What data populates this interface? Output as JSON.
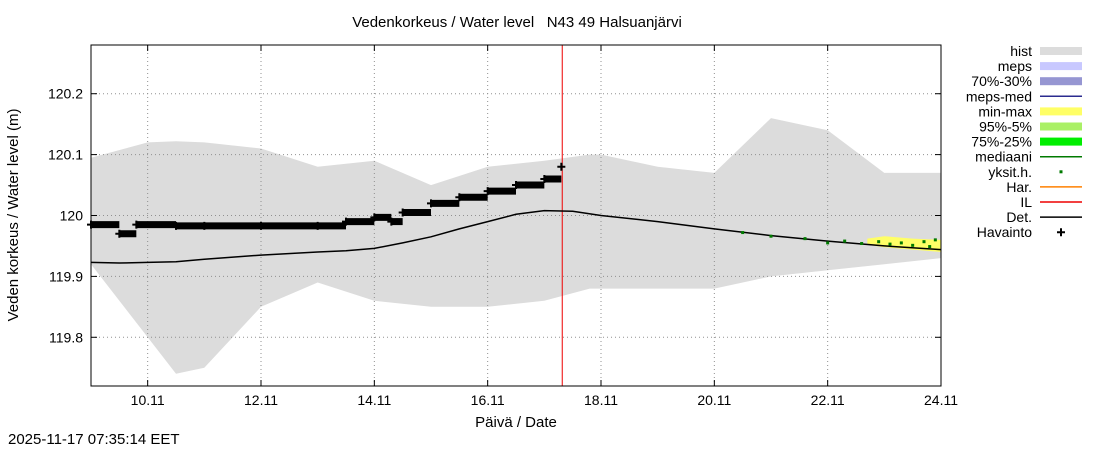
{
  "timestamp": "2025-11-17 07:35:14 EET",
  "chart_data": {
    "type": "line",
    "title": "Vedenkorkeus / Water level   N43 49 Halsuanjärvi",
    "xlabel": "Päivä / Date",
    "ylabel": "Veden korkeus / Water level (m)",
    "xlim": [
      "2025-11-09 00:00",
      "2025-11-24 00:00"
    ],
    "ylim": [
      119.72,
      120.28
    ],
    "x_ticks": [
      "10.11",
      "12.11",
      "14.11",
      "16.11",
      "18.11",
      "20.11",
      "22.11",
      "24.11"
    ],
    "y_ticks": [
      119.8,
      119.9,
      120,
      120.1,
      120.2
    ],
    "y_tick_labels": [
      "119.8",
      "119.9",
      "120",
      "120.1",
      "120.2"
    ],
    "grid": true,
    "legend_position": "right",
    "forecast_start": "2025-11-17 07:35",
    "legend": [
      {
        "label": "hist",
        "kind": "box",
        "color": "#dcdcdc"
      },
      {
        "label": "meps",
        "kind": "box",
        "color": "#c8c8ff"
      },
      {
        "label": "70%-30%",
        "kind": "box",
        "color": "#9696d2"
      },
      {
        "label": "meps-med",
        "kind": "line",
        "color": "#2b2b8f"
      },
      {
        "label": "min-max",
        "kind": "box",
        "color": "#ffff66"
      },
      {
        "label": "95%-5%",
        "kind": "box",
        "color": "#aaf066"
      },
      {
        "label": "75%-25%",
        "kind": "box",
        "color": "#00ee00"
      },
      {
        "label": "mediaani",
        "kind": "line",
        "color": "#007a00"
      },
      {
        "label": "yksit.h.",
        "kind": "dot",
        "color": "#007a00"
      },
      {
        "label": "Har.",
        "kind": "line",
        "color": "#ff8000"
      },
      {
        "label": "IL",
        "kind": "line",
        "color": "#ee0000"
      },
      {
        "label": "Det.",
        "kind": "line",
        "color": "#000000"
      },
      {
        "label": "Havainto",
        "kind": "plus",
        "color": "#000000"
      }
    ],
    "hist_band": {
      "x": [
        9.0,
        10.0,
        10.5,
        11.0,
        12.0,
        13.0,
        14.0,
        15.0,
        16.0,
        17.0,
        17.8,
        18.0,
        19.0,
        20.0,
        21.0,
        22.0,
        23.0,
        24.0
      ],
      "upper": [
        120.095,
        120.12,
        120.122,
        120.12,
        120.11,
        120.08,
        120.09,
        120.05,
        120.08,
        120.09,
        120.1,
        120.1,
        120.08,
        120.07,
        120.16,
        120.14,
        120.07,
        120.07
      ],
      "lower": [
        119.92,
        119.8,
        119.74,
        119.75,
        119.85,
        119.89,
        119.86,
        119.85,
        119.85,
        119.86,
        119.88,
        119.88,
        119.88,
        119.88,
        119.9,
        119.91,
        119.92,
        119.93
      ]
    },
    "ensemble_band": {
      "x": [
        22.7,
        23.0,
        23.5,
        24.0
      ],
      "upper": [
        119.962,
        119.966,
        119.962,
        119.96
      ],
      "lower": [
        119.952,
        119.948,
        119.944,
        119.94
      ]
    },
    "series": [
      {
        "name": "Det.",
        "x": [
          9.0,
          9.5,
          10.0,
          10.5,
          11.0,
          12.0,
          13.0,
          13.5,
          14.0,
          14.5,
          15.0,
          15.5,
          16.0,
          16.5,
          17.0,
          17.5,
          18.0,
          19.0,
          20.0,
          21.0,
          22.0,
          23.0,
          24.0
        ],
        "y": [
          119.923,
          119.922,
          119.923,
          119.924,
          119.928,
          119.935,
          119.94,
          119.942,
          119.946,
          119.955,
          119.965,
          119.978,
          119.99,
          120.002,
          120.008,
          120.007,
          120.0,
          119.99,
          119.978,
          119.967,
          119.958,
          119.95,
          119.944
        ]
      },
      {
        "name": "Havainto",
        "x": [
          9.0,
          9.5,
          9.8,
          10.5,
          11.0,
          12.0,
          13.0,
          13.5,
          14.0,
          14.3,
          14.5,
          15.0,
          15.5,
          16.0,
          16.5,
          17.0,
          17.3
        ],
        "y": [
          119.985,
          119.97,
          119.985,
          119.983,
          119.983,
          119.983,
          119.983,
          119.99,
          119.997,
          119.99,
          120.005,
          120.02,
          120.03,
          120.04,
          120.05,
          120.06,
          120.08
        ]
      }
    ],
    "individual_points": {
      "x": [
        20.5,
        21.0,
        21.6,
        22.0,
        22.3,
        22.6,
        22.9,
        23.1,
        23.3,
        23.5,
        23.7,
        23.8,
        23.9
      ],
      "y": [
        119.972,
        119.966,
        119.962,
        119.955,
        119.958,
        119.954,
        119.957,
        119.953,
        119.955,
        119.951,
        119.957,
        119.949,
        119.96
      ]
    }
  }
}
